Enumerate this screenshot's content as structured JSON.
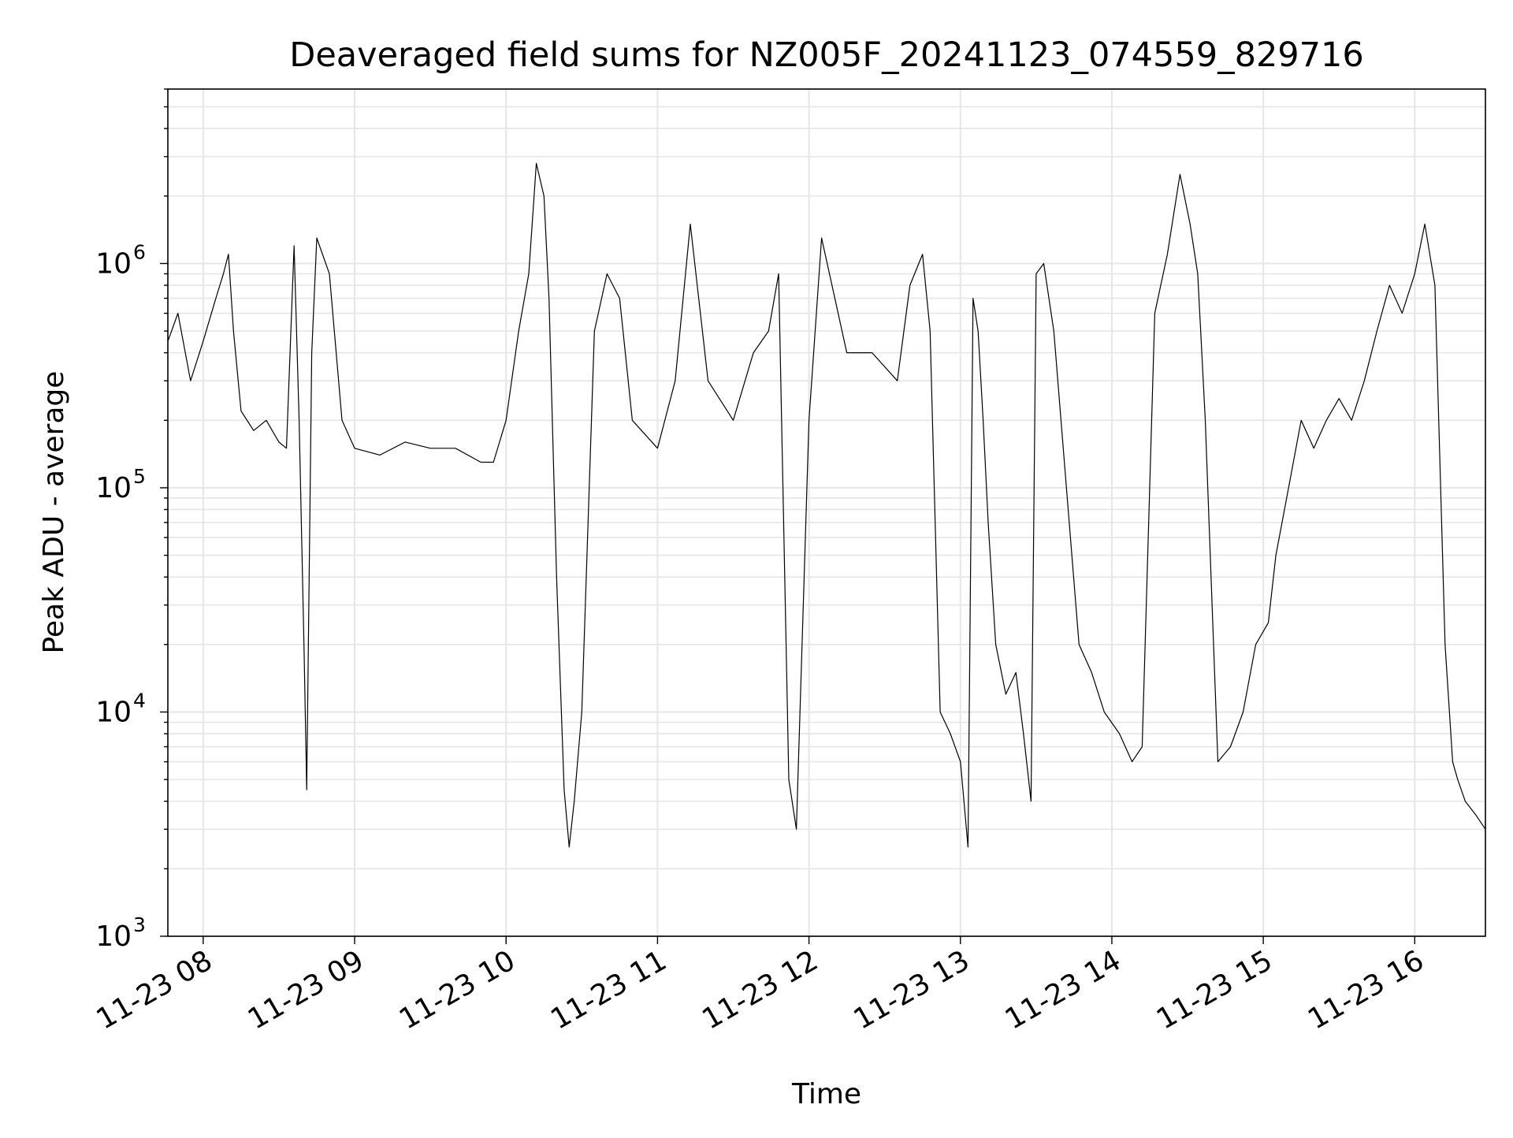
{
  "chart_data": {
    "type": "line",
    "title": "Deaveraged field sums for NZ005F_20241123_074559_829716",
    "xlabel": "Time",
    "ylabel": "Peak ADU - average",
    "yscale": "log",
    "ylim": [
      1000,
      6000000
    ],
    "xlim": [
      "2024-11-23T07:46",
      "2024-11-23T16:28"
    ],
    "grid": true,
    "line_color": "#000000",
    "x_ticks": [
      {
        "value": "2024-11-23T08:00",
        "label": "11-23 08"
      },
      {
        "value": "2024-11-23T09:00",
        "label": "11-23 09"
      },
      {
        "value": "2024-11-23T10:00",
        "label": "11-23 10"
      },
      {
        "value": "2024-11-23T11:00",
        "label": "11-23 11"
      },
      {
        "value": "2024-11-23T12:00",
        "label": "11-23 12"
      },
      {
        "value": "2024-11-23T13:00",
        "label": "11-23 13"
      },
      {
        "value": "2024-11-23T14:00",
        "label": "11-23 14"
      },
      {
        "value": "2024-11-23T15:00",
        "label": "11-23 15"
      },
      {
        "value": "2024-11-23T16:00",
        "label": "11-23 16"
      }
    ],
    "y_ticks": [
      {
        "value": 1000,
        "base": "10",
        "exp": "3"
      },
      {
        "value": 10000,
        "base": "10",
        "exp": "4"
      },
      {
        "value": 100000,
        "base": "10",
        "exp": "5"
      },
      {
        "value": 1000000,
        "base": "10",
        "exp": "6"
      }
    ],
    "x": [
      "2024-11-23T07:46",
      "2024-11-23T07:50",
      "2024-11-23T07:55",
      "2024-11-23T08:00",
      "2024-11-23T08:05",
      "2024-11-23T08:08",
      "2024-11-23T08:10",
      "2024-11-23T08:12",
      "2024-11-23T08:15",
      "2024-11-23T08:20",
      "2024-11-23T08:25",
      "2024-11-23T08:30",
      "2024-11-23T08:33",
      "2024-11-23T08:36",
      "2024-11-23T08:38",
      "2024-11-23T08:40",
      "2024-11-23T08:41",
      "2024-11-23T08:43",
      "2024-11-23T08:45",
      "2024-11-23T08:50",
      "2024-11-23T08:55",
      "2024-11-23T09:00",
      "2024-11-23T09:10",
      "2024-11-23T09:20",
      "2024-11-23T09:30",
      "2024-11-23T09:40",
      "2024-11-23T09:50",
      "2024-11-23T09:55",
      "2024-11-23T10:00",
      "2024-11-23T10:05",
      "2024-11-23T10:09",
      "2024-11-23T10:12",
      "2024-11-23T10:15",
      "2024-11-23T10:17",
      "2024-11-23T10:20",
      "2024-11-23T10:23",
      "2024-11-23T10:25",
      "2024-11-23T10:27",
      "2024-11-23T10:30",
      "2024-11-23T10:35",
      "2024-11-23T10:40",
      "2024-11-23T10:45",
      "2024-11-23T10:50",
      "2024-11-23T11:00",
      "2024-11-23T11:07",
      "2024-11-23T11:13",
      "2024-11-23T11:20",
      "2024-11-23T11:30",
      "2024-11-23T11:38",
      "2024-11-23T11:44",
      "2024-11-23T11:48",
      "2024-11-23T11:52",
      "2024-11-23T11:55",
      "2024-11-23T12:00",
      "2024-11-23T12:05",
      "2024-11-23T12:15",
      "2024-11-23T12:25",
      "2024-11-23T12:35",
      "2024-11-23T12:40",
      "2024-11-23T12:45",
      "2024-11-23T12:48",
      "2024-11-23T12:52",
      "2024-11-23T12:56",
      "2024-11-23T13:00",
      "2024-11-23T13:03",
      "2024-11-23T13:05",
      "2024-11-23T13:07",
      "2024-11-23T13:09",
      "2024-11-23T13:11",
      "2024-11-23T13:14",
      "2024-11-23T13:18",
      "2024-11-23T13:22",
      "2024-11-23T13:25",
      "2024-11-23T13:28",
      "2024-11-23T13:30",
      "2024-11-23T13:33",
      "2024-11-23T13:37",
      "2024-11-23T13:42",
      "2024-11-23T13:47",
      "2024-11-23T13:52",
      "2024-11-23T13:57",
      "2024-11-23T14:03",
      "2024-11-23T14:08",
      "2024-11-23T14:12",
      "2024-11-23T14:17",
      "2024-11-23T14:22",
      "2024-11-23T14:27",
      "2024-11-23T14:31",
      "2024-11-23T14:34",
      "2024-11-23T14:37",
      "2024-11-23T14:42",
      "2024-11-23T14:47",
      "2024-11-23T14:52",
      "2024-11-23T14:57",
      "2024-11-23T15:02",
      "2024-11-23T15:05",
      "2024-11-23T15:10",
      "2024-11-23T15:15",
      "2024-11-23T15:20",
      "2024-11-23T15:25",
      "2024-11-23T15:30",
      "2024-11-23T15:35",
      "2024-11-23T15:40",
      "2024-11-23T15:45",
      "2024-11-23T15:50",
      "2024-11-23T15:55",
      "2024-11-23T16:00",
      "2024-11-23T16:04",
      "2024-11-23T16:08",
      "2024-11-23T16:12",
      "2024-11-23T16:15",
      "2024-11-23T16:17",
      "2024-11-23T16:20",
      "2024-11-23T16:24",
      "2024-11-23T16:28"
    ],
    "y": [
      450000,
      600000,
      300000,
      450000,
      700000,
      900000,
      1100000,
      500000,
      220000,
      180000,
      200000,
      160000,
      150000,
      1200000,
      200000,
      18000,
      4500,
      400000,
      1300000,
      900000,
      200000,
      150000,
      140000,
      160000,
      150000,
      150000,
      130000,
      130000,
      200000,
      500000,
      900000,
      2800000,
      2000000,
      700000,
      40000,
      4500,
      2500,
      4000,
      10000,
      500000,
      900000,
      700000,
      200000,
      150000,
      300000,
      1500000,
      300000,
      200000,
      400000,
      500000,
      900000,
      5000,
      3000,
      200000,
      1300000,
      400000,
      400000,
      300000,
      800000,
      1100000,
      500000,
      10000,
      8000,
      6000,
      2500,
      700000,
      500000,
      200000,
      70000,
      20000,
      12000,
      15000,
      8000,
      4000,
      900000,
      1000000,
      500000,
      100000,
      20000,
      15000,
      10000,
      8000,
      6000,
      7000,
      600000,
      1100000,
      2500000,
      1500000,
      900000,
      200000,
      6000,
      7000,
      10000,
      20000,
      25000,
      50000,
      100000,
      200000,
      150000,
      200000,
      250000,
      200000,
      300000,
      500000,
      800000,
      600000,
      900000,
      1500000,
      800000,
      20000,
      6000,
      5000,
      4000,
      3500,
      3000
    ]
  }
}
